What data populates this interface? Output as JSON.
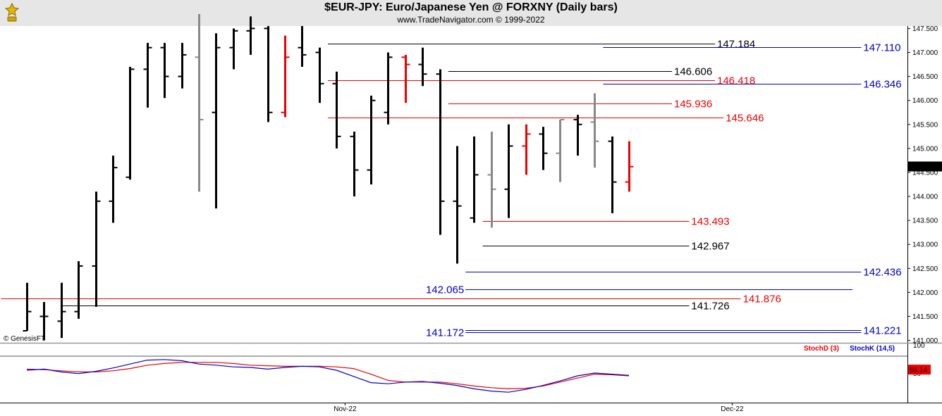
{
  "header": {
    "title": "$EUR-JPY:  Euro/Japanese Yen @ FORXNY  (Daily bars)",
    "subtitle": "www.TradeNavigator.com © 1999-2022",
    "logo_icon": "gold-trophy-icon"
  },
  "watermark": "© GenesisFT",
  "colors": {
    "up": "#000000",
    "down_grey": "#888888",
    "red": "#ee0000",
    "blue": "#0000cc",
    "black_line": "#000000"
  },
  "chart_data": {
    "type": "ohlc-bar",
    "title": "$EUR-JPY:  Euro/Japanese Yen @ FORXNY  (Daily bars)",
    "ylim": [
      140.95,
      147.55
    ],
    "y_ticks": [
      "141.000",
      "141.500",
      "142.000",
      "142.500",
      "143.000",
      "143.500",
      "144.000",
      "144.500",
      "145.000",
      "145.500",
      "146.000",
      "146.500",
      "147.000",
      "147.500"
    ],
    "x_labels": [
      {
        "label": "Nov-22",
        "bar": 18.5
      },
      {
        "label": "Dec-22",
        "bar": 41
      }
    ],
    "last_price": "144.624",
    "bars": [
      {
        "o": 141.2,
        "h": 142.2,
        "l": 141.2,
        "c": 141.6,
        "color": "black"
      },
      {
        "o": 141.5,
        "h": 141.8,
        "l": 141.0,
        "c": 141.5,
        "color": "black"
      },
      {
        "o": 141.4,
        "h": 142.2,
        "l": 141.05,
        "c": 141.6,
        "color": "black"
      },
      {
        "o": 141.6,
        "h": 142.65,
        "l": 141.45,
        "c": 142.55,
        "color": "black"
      },
      {
        "o": 142.55,
        "h": 144.1,
        "l": 141.7,
        "c": 143.9,
        "color": "black"
      },
      {
        "o": 143.9,
        "h": 144.85,
        "l": 143.45,
        "c": 144.6,
        "color": "black"
      },
      {
        "o": 144.4,
        "h": 146.7,
        "l": 144.35,
        "c": 146.65,
        "color": "black"
      },
      {
        "o": 146.65,
        "h": 147.2,
        "l": 145.85,
        "c": 147.1,
        "color": "black"
      },
      {
        "o": 147.1,
        "h": 147.2,
        "l": 146.05,
        "c": 146.5,
        "color": "black"
      },
      {
        "o": 146.5,
        "h": 147.2,
        "l": 146.25,
        "c": 146.95,
        "color": "black"
      },
      {
        "o": 146.9,
        "h": 147.8,
        "l": 144.1,
        "c": 145.6,
        "color": "grey"
      },
      {
        "o": 145.75,
        "h": 147.4,
        "l": 143.75,
        "c": 147.1,
        "color": "black"
      },
      {
        "o": 147.1,
        "h": 147.5,
        "l": 146.65,
        "c": 147.45,
        "color": "black"
      },
      {
        "o": 147.45,
        "h": 147.75,
        "l": 146.95,
        "c": 147.5,
        "color": "black"
      },
      {
        "o": 147.5,
        "h": 147.55,
        "l": 145.55,
        "c": 145.75,
        "color": "black"
      },
      {
        "o": 145.75,
        "h": 147.35,
        "l": 145.65,
        "c": 146.9,
        "color": "red"
      },
      {
        "o": 147.1,
        "h": 147.55,
        "l": 146.7,
        "c": 146.95,
        "color": "black"
      },
      {
        "o": 147.0,
        "h": 147.1,
        "l": 145.95,
        "c": 146.35,
        "color": "black"
      },
      {
        "o": 146.35,
        "h": 146.6,
        "l": 145.0,
        "c": 145.25,
        "color": "black"
      },
      {
        "o": 145.25,
        "h": 145.35,
        "l": 144.0,
        "c": 144.55,
        "color": "black"
      },
      {
        "o": 144.55,
        "h": 146.1,
        "l": 144.25,
        "c": 146.0,
        "color": "black"
      },
      {
        "o": 145.75,
        "h": 147.0,
        "l": 145.5,
        "c": 146.9,
        "color": "black"
      },
      {
        "o": 146.9,
        "h": 146.95,
        "l": 145.95,
        "c": 146.75,
        "color": "red"
      },
      {
        "o": 146.75,
        "h": 147.1,
        "l": 146.3,
        "c": 146.55,
        "color": "black"
      },
      {
        "o": 146.55,
        "h": 146.65,
        "l": 143.2,
        "c": 143.9,
        "color": "black"
      },
      {
        "o": 143.9,
        "h": 145.05,
        "l": 142.6,
        "c": 143.8,
        "color": "black"
      },
      {
        "o": 143.55,
        "h": 145.25,
        "l": 143.45,
        "c": 144.45,
        "color": "black"
      },
      {
        "o": 144.45,
        "h": 145.35,
        "l": 143.35,
        "c": 144.15,
        "color": "grey"
      },
      {
        "o": 144.15,
        "h": 145.5,
        "l": 143.55,
        "c": 145.05,
        "color": "black"
      },
      {
        "o": 145.05,
        "h": 145.5,
        "l": 144.45,
        "c": 145.3,
        "color": "red"
      },
      {
        "o": 145.3,
        "h": 145.45,
        "l": 144.55,
        "c": 144.9,
        "color": "black"
      },
      {
        "o": 144.9,
        "h": 145.6,
        "l": 144.3,
        "c": 145.6,
        "color": "grey"
      },
      {
        "o": 145.6,
        "h": 145.7,
        "l": 144.85,
        "c": 145.5,
        "color": "black"
      },
      {
        "o": 145.55,
        "h": 146.15,
        "l": 144.6,
        "c": 145.15,
        "color": "grey"
      },
      {
        "o": 145.15,
        "h": 145.25,
        "l": 143.65,
        "c": 144.3,
        "color": "black"
      },
      {
        "o": 144.3,
        "h": 145.15,
        "l": 144.1,
        "c": 144.62,
        "color": "red"
      }
    ],
    "levels": [
      {
        "value": 147.184,
        "label": "147.184",
        "color": "black",
        "x0": 17.5,
        "x1": 40,
        "label_pos": "end"
      },
      {
        "value": 147.11,
        "label": "147.110",
        "color": "blue",
        "x0": 33.5,
        "x1": 48.5,
        "label_pos": "end"
      },
      {
        "value": 146.606,
        "label": "146.606",
        "color": "black",
        "x0": 24.5,
        "x1": 37.5,
        "label_pos": "end"
      },
      {
        "value": 146.418,
        "label": "146.418",
        "color": "red",
        "x0": 17.5,
        "x1": 40,
        "label_pos": "end"
      },
      {
        "value": 146.346,
        "label": "146.346",
        "color": "blue",
        "x0": 33.5,
        "x1": 48.5,
        "label_pos": "end"
      },
      {
        "value": 145.936,
        "label": "145.936",
        "color": "red",
        "x0": 24.5,
        "x1": 37.5,
        "label_pos": "end"
      },
      {
        "value": 145.646,
        "label": "145.646",
        "color": "red",
        "x0": 17.5,
        "x1": 40.5,
        "label_pos": "end"
      },
      {
        "value": 143.493,
        "label": "143.493",
        "color": "red",
        "x0": 26.5,
        "x1": 38.5,
        "label_pos": "end"
      },
      {
        "value": 142.967,
        "label": "142.967",
        "color": "black",
        "x0": 26.5,
        "x1": 38.5,
        "label_pos": "end"
      },
      {
        "value": 142.436,
        "label": "142.436",
        "color": "blue",
        "x0": 25.5,
        "x1": 48.5,
        "label_pos": "end"
      },
      {
        "value": 142.065,
        "label": "142.065",
        "color": "blue",
        "x0": 25.5,
        "x1": 48,
        "label_pos": "start"
      },
      {
        "value": 141.876,
        "label": "141.876",
        "color": "red",
        "x0": -1.5,
        "x1": 41.5,
        "label_pos": "end"
      },
      {
        "value": 141.726,
        "label": "141.726",
        "color": "black",
        "x0": 2,
        "x1": 38.5,
        "label_pos": "end"
      },
      {
        "value": 141.221,
        "label": "141.221",
        "color": "blue",
        "x0": 25.5,
        "x1": 48.5,
        "label_pos": "end"
      },
      {
        "value": 141.172,
        "label": "141.172",
        "color": "blue",
        "x0": 25.5,
        "x1": 48.5,
        "label_pos": "start"
      }
    ],
    "stochastic": {
      "ylim": [
        0,
        100
      ],
      "y_ticks": [
        "100",
        "50"
      ],
      "ref_line": 80,
      "last_value": "56.14",
      "legend": [
        {
          "name": "StochD (3)",
          "color": "red"
        },
        {
          "name": "StochK (14,5)",
          "color": "blue"
        }
      ],
      "d": [
        57,
        56,
        54,
        52,
        52,
        54,
        58,
        64,
        67,
        69,
        69,
        69,
        67,
        64,
        63,
        62,
        62,
        62,
        61,
        58,
        48,
        37,
        34,
        34,
        34,
        31,
        27,
        24,
        22,
        23,
        27,
        34,
        41,
        48,
        47,
        45
      ],
      "k": [
        55,
        57,
        52,
        49,
        53,
        59,
        66,
        73,
        74,
        72,
        66,
        64,
        61,
        60,
        57,
        60,
        62,
        61,
        55,
        44,
        33,
        31,
        34,
        35,
        32,
        28,
        22,
        18,
        16,
        21,
        28,
        36,
        45,
        50,
        48,
        46
      ]
    }
  }
}
